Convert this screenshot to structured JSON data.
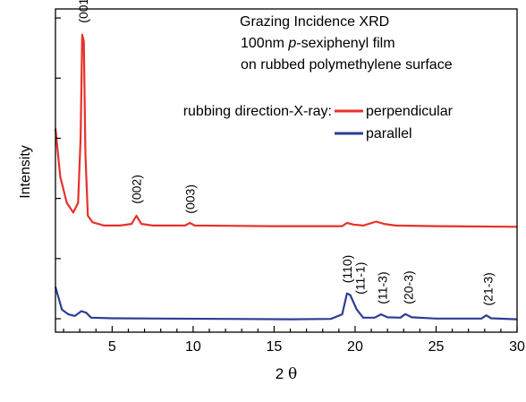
{
  "chart_data": {
    "type": "line",
    "annotation_lines": [
      "Grazing Incidence XRD",
      "100nm ",
      "p",
      "-sexiphenyl film",
      "on rubbed polymethylene surface"
    ],
    "xlabel_text": "2 ",
    "xlabel_symbol": "θ",
    "ylabel": "Intensity",
    "xlim": [
      1.5,
      30
    ],
    "x_ticks": [
      "5",
      "10",
      "15",
      "20",
      "25",
      "30"
    ],
    "legend_title": "rubbing direction-X-ray:",
    "legend_placement": "top-right",
    "grid": false,
    "y_ticks_labeled": false,
    "series": [
      {
        "name": "perpendicular",
        "color": "#e8312a",
        "points": [
          [
            1.5,
            0.63
          ],
          [
            1.8,
            0.48
          ],
          [
            2.2,
            0.4
          ],
          [
            2.6,
            0.37
          ],
          [
            2.9,
            0.4
          ],
          [
            3.05,
            0.6
          ],
          [
            3.15,
            0.92
          ],
          [
            3.25,
            0.9
          ],
          [
            3.35,
            0.55
          ],
          [
            3.5,
            0.36
          ],
          [
            3.8,
            0.34
          ],
          [
            4.5,
            0.33
          ],
          [
            5.5,
            0.33
          ],
          [
            6.2,
            0.335
          ],
          [
            6.5,
            0.36
          ],
          [
            6.8,
            0.335
          ],
          [
            7.5,
            0.33
          ],
          [
            9.5,
            0.33
          ],
          [
            9.8,
            0.338
          ],
          [
            10.1,
            0.33
          ],
          [
            15,
            0.328
          ],
          [
            19.2,
            0.328
          ],
          [
            19.5,
            0.338
          ],
          [
            19.9,
            0.333
          ],
          [
            20.5,
            0.33
          ],
          [
            21.3,
            0.342
          ],
          [
            21.8,
            0.335
          ],
          [
            22.5,
            0.33
          ],
          [
            25,
            0.328
          ],
          [
            30,
            0.326
          ]
        ]
      },
      {
        "name": "parallel",
        "color": "#2c3d96",
        "points": [
          [
            1.5,
            0.14
          ],
          [
            1.9,
            0.07
          ],
          [
            2.3,
            0.055
          ],
          [
            2.7,
            0.05
          ],
          [
            3.1,
            0.065
          ],
          [
            3.4,
            0.06
          ],
          [
            3.7,
            0.045
          ],
          [
            5,
            0.043
          ],
          [
            8,
            0.042
          ],
          [
            12,
            0.041
          ],
          [
            16,
            0.04
          ],
          [
            18.5,
            0.041
          ],
          [
            19.2,
            0.055
          ],
          [
            19.5,
            0.12
          ],
          [
            19.7,
            0.115
          ],
          [
            20.1,
            0.07
          ],
          [
            20.5,
            0.045
          ],
          [
            21.2,
            0.045
          ],
          [
            21.6,
            0.055
          ],
          [
            22,
            0.046
          ],
          [
            22.8,
            0.045
          ],
          [
            23.1,
            0.056
          ],
          [
            23.5,
            0.046
          ],
          [
            25,
            0.042
          ],
          [
            27.8,
            0.042
          ],
          [
            28.1,
            0.052
          ],
          [
            28.4,
            0.043
          ],
          [
            30,
            0.04
          ]
        ]
      }
    ],
    "peak_labels": [
      {
        "text": "(001)",
        "x": 3.2,
        "y": 0.94
      },
      {
        "text": "(002)",
        "x": 6.5,
        "y": 0.38
      },
      {
        "text": "(003)",
        "x": 9.8,
        "y": 0.35
      },
      {
        "text": "(110)",
        "x": 19.5,
        "y": 0.135
      },
      {
        "text": "(11-1)",
        "x": 20.3,
        "y": 0.1
      },
      {
        "text": "(11-3)",
        "x": 21.7,
        "y": 0.07
      },
      {
        "text": "(20-3)",
        "x": 23.3,
        "y": 0.07
      },
      {
        "text": "(21-3)",
        "x": 28.2,
        "y": 0.065
      }
    ]
  }
}
